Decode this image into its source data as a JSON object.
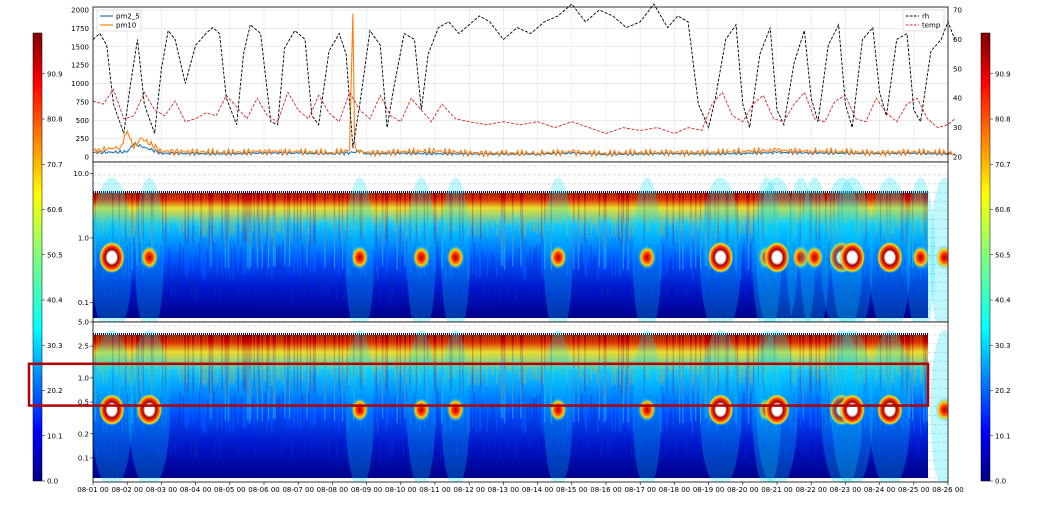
{
  "chart_data": [
    {
      "type": "line",
      "panel": "time-series",
      "x_labels": [
        "08-01 00",
        "08-02 00",
        "08-03 00",
        "08-04 00",
        "08-05 00",
        "08-06 00",
        "08-07 00",
        "08-08 00",
        "08-09 00",
        "08-10 00",
        "08-11 00",
        "08-12 00",
        "08-13 00",
        "08-14 00",
        "08-15 00",
        "08-16 00",
        "08-17 00",
        "08-18 00",
        "08-19 00",
        "08-20 00",
        "08-21 00",
        "08-22 00",
        "08-23 00",
        "08-24 00",
        "08-25 00",
        "08-26 00"
      ],
      "xlim": [
        "08-01 00",
        "08-26 00"
      ],
      "left_axis": {
        "ylim": [
          0,
          2000
        ],
        "ticks": [
          "0",
          "250",
          "500",
          "750",
          "1000",
          "1250",
          "1500",
          "1750",
          "2000"
        ]
      },
      "right_axis": {
        "ylim": [
          20,
          70
        ],
        "ticks": [
          "20",
          "30",
          "40",
          "50",
          "60",
          "70"
        ]
      },
      "legend_left": {
        "placement": "upper-left",
        "entries": [
          {
            "name": "pm2_5",
            "color": "#1f77b4"
          },
          {
            "name": "pm10",
            "color": "#ff7f0e"
          }
        ]
      },
      "legend_right": {
        "placement": "upper-right",
        "entries": [
          {
            "name": "rh",
            "color": "#000000",
            "style": "dashed"
          },
          {
            "name": "temp",
            "color": "#d62728",
            "style": "dashed"
          }
        ]
      },
      "series": [
        {
          "name": "pm2_5",
          "axis": "left",
          "x_day": [
            0,
            1,
            1.2,
            2,
            3,
            4,
            5,
            6,
            7,
            7.6,
            7.8,
            8,
            9,
            10,
            11,
            12,
            13,
            14,
            15,
            16,
            17,
            18,
            19,
            20,
            21,
            22,
            23,
            24,
            25,
            25.2
          ],
          "values": [
            60,
            70,
            180,
            50,
            45,
            40,
            55,
            50,
            45,
            60,
            80,
            40,
            50,
            45,
            40,
            35,
            40,
            50,
            35,
            40,
            45,
            40,
            50,
            60,
            55,
            50,
            45,
            50,
            40,
            45
          ]
        },
        {
          "name": "pm10",
          "axis": "left",
          "x_day": [
            0,
            0.2,
            0.8,
            1.0,
            1.2,
            1.4,
            2,
            3,
            4,
            5,
            6,
            7,
            7.5,
            7.6,
            7.65,
            7.7,
            8,
            9,
            10,
            11,
            12,
            13,
            14,
            15,
            16,
            17,
            18,
            19,
            20,
            21,
            22,
            23,
            24,
            25,
            25.2
          ],
          "values": [
            90,
            100,
            130,
            350,
            120,
            260,
            80,
            70,
            60,
            80,
            70,
            60,
            90,
            1950,
            200,
            90,
            60,
            70,
            80,
            60,
            50,
            55,
            70,
            50,
            60,
            65,
            60,
            80,
            90,
            80,
            70,
            60,
            70,
            60,
            50
          ]
        },
        {
          "name": "rh",
          "axis": "right",
          "x_day": [
            0,
            0.2,
            0.4,
            0.6,
            0.9,
            1.1,
            1.3,
            1.5,
            1.8,
            2.0,
            2.2,
            2.4,
            2.7,
            3.0,
            3.3,
            3.5,
            3.7,
            3.9,
            4.2,
            4.4,
            4.6,
            4.9,
            5.2,
            5.4,
            5.6,
            5.9,
            6.2,
            6.4,
            6.6,
            6.9,
            7.2,
            7.4,
            7.6,
            7.8,
            8.1,
            8.4,
            8.6,
            8.8,
            9.1,
            9.4,
            9.6,
            9.8,
            10.1,
            10.4,
            10.7,
            11.0,
            11.3,
            11.6,
            12.0,
            12.4,
            12.8,
            13.2,
            13.6,
            14.0,
            14.4,
            14.8,
            15.2,
            15.6,
            16.0,
            16.4,
            16.8,
            17.1,
            17.4,
            17.7,
            18.0,
            18.2,
            18.5,
            18.8,
            19.0,
            19.2,
            19.5,
            19.8,
            20.0,
            20.2,
            20.5,
            20.8,
            21.0,
            21.2,
            21.5,
            21.8,
            22.0,
            22.2,
            22.5,
            22.8,
            23.0,
            23.2,
            23.5,
            23.8,
            24.0,
            24.2,
            24.5,
            24.8,
            25.0,
            25.2
          ],
          "values": [
            60,
            62,
            58,
            38,
            28,
            45,
            60,
            38,
            28,
            50,
            63,
            60,
            45,
            58,
            62,
            64,
            62,
            40,
            31,
            55,
            65,
            62,
            32,
            31,
            57,
            63,
            60,
            34,
            31,
            56,
            62,
            55,
            23,
            38,
            63,
            58,
            30,
            44,
            62,
            60,
            36,
            55,
            64,
            66,
            62,
            65,
            68,
            66,
            60,
            64,
            62,
            66,
            68,
            72,
            66,
            70,
            68,
            64,
            66,
            72,
            64,
            68,
            66,
            38,
            30,
            40,
            60,
            65,
            38,
            30,
            55,
            64,
            36,
            31,
            52,
            63,
            40,
            32,
            58,
            65,
            38,
            30,
            60,
            64,
            42,
            34,
            60,
            62,
            36,
            32,
            56,
            60,
            66,
            60
          ]
        },
        {
          "name": "temp",
          "axis": "right",
          "x_day": [
            0,
            0.3,
            0.6,
            0.9,
            1.2,
            1.5,
            1.8,
            2.1,
            2.4,
            2.7,
            3.0,
            3.3,
            3.6,
            3.9,
            4.2,
            4.5,
            4.8,
            5.1,
            5.4,
            5.7,
            6.0,
            6.3,
            6.6,
            6.9,
            7.2,
            7.5,
            7.8,
            8.1,
            8.4,
            8.7,
            9.0,
            9.3,
            9.6,
            9.9,
            10.2,
            10.6,
            11.0,
            11.5,
            12.0,
            12.5,
            13.0,
            13.5,
            14.0,
            14.5,
            15.0,
            15.5,
            16.0,
            16.5,
            17.0,
            17.4,
            17.8,
            18.1,
            18.4,
            18.7,
            19.0,
            19.3,
            19.6,
            19.9,
            20.2,
            20.5,
            20.8,
            21.1,
            21.4,
            21.7,
            22.0,
            22.3,
            22.6,
            22.9,
            23.2,
            23.5,
            23.8,
            24.1,
            24.4,
            24.7,
            25.0,
            25.2
          ],
          "values": [
            39,
            38,
            43,
            33,
            34,
            42,
            36,
            34,
            39,
            32,
            33,
            35,
            34,
            41,
            37,
            33,
            40,
            34,
            32,
            42,
            36,
            33,
            41,
            35,
            32,
            42,
            36,
            33,
            41,
            34,
            32,
            40,
            36,
            32,
            38,
            33,
            32,
            31,
            32,
            31,
            32,
            30,
            32,
            30,
            28,
            30,
            29,
            30,
            28,
            30,
            29,
            38,
            42,
            34,
            32,
            38,
            41,
            33,
            32,
            38,
            42,
            33,
            32,
            39,
            41,
            33,
            32,
            40,
            35,
            32,
            38,
            40,
            33,
            30,
            31,
            33
          ]
        }
      ]
    },
    {
      "type": "heatmap",
      "panel": "wavelet-pm2_5",
      "y_scale": "log",
      "ylim": [
        0.05,
        15
      ],
      "y_ticks": [
        "0.1",
        "1.0",
        "10.0"
      ],
      "colorscale": "jet",
      "hot_spots": [
        {
          "x_day": 0.55,
          "y": 0.5,
          "level": "saturated"
        },
        {
          "x_day": 1.65,
          "y": 0.5,
          "level": "high"
        },
        {
          "x_day": 7.8,
          "y": 0.5,
          "level": "high"
        },
        {
          "x_day": 9.6,
          "y": 0.5,
          "level": "high"
        },
        {
          "x_day": 10.6,
          "y": 0.5,
          "level": "high"
        },
        {
          "x_day": 13.6,
          "y": 0.5,
          "level": "high"
        },
        {
          "x_day": 16.2,
          "y": 0.5,
          "level": "high"
        },
        {
          "x_day": 18.35,
          "y": 0.5,
          "level": "saturated"
        },
        {
          "x_day": 19.7,
          "y": 0.5,
          "level": "high"
        },
        {
          "x_day": 20.0,
          "y": 0.5,
          "level": "saturated"
        },
        {
          "x_day": 20.7,
          "y": 0.5,
          "level": "high"
        },
        {
          "x_day": 21.1,
          "y": 0.5,
          "level": "high"
        },
        {
          "x_day": 21.9,
          "y": 0.5,
          "level": "saturated"
        },
        {
          "x_day": 22.2,
          "y": 0.5,
          "level": "saturated"
        },
        {
          "x_day": 23.3,
          "y": 0.5,
          "level": "saturated"
        },
        {
          "x_day": 24.2,
          "y": 0.5,
          "level": "high"
        },
        {
          "x_day": 24.9,
          "y": 0.5,
          "level": "high"
        }
      ]
    },
    {
      "type": "heatmap",
      "panel": "wavelet-pm10",
      "y_scale": "log",
      "ylim": [
        0.05,
        5
      ],
      "y_ticks": [
        "0.1",
        "0.2",
        "0.5",
        "1.0",
        "2.5",
        "5.0"
      ],
      "colorscale": "jet",
      "highlight_band": {
        "ymin": 0.45,
        "ymax": 1.5,
        "color": "#b00000"
      },
      "hot_spots": [
        {
          "x_day": 0.55,
          "y": 0.4,
          "level": "saturated"
        },
        {
          "x_day": 1.65,
          "y": 0.4,
          "level": "saturated"
        },
        {
          "x_day": 7.8,
          "y": 0.4,
          "level": "high"
        },
        {
          "x_day": 9.6,
          "y": 0.4,
          "level": "high"
        },
        {
          "x_day": 10.6,
          "y": 0.4,
          "level": "high"
        },
        {
          "x_day": 13.6,
          "y": 0.4,
          "level": "high"
        },
        {
          "x_day": 16.2,
          "y": 0.4,
          "level": "high"
        },
        {
          "x_day": 18.35,
          "y": 0.4,
          "level": "saturated"
        },
        {
          "x_day": 19.7,
          "y": 0.4,
          "level": "high"
        },
        {
          "x_day": 20.0,
          "y": 0.4,
          "level": "saturated"
        },
        {
          "x_day": 21.9,
          "y": 0.4,
          "level": "saturated"
        },
        {
          "x_day": 22.2,
          "y": 0.4,
          "level": "saturated"
        },
        {
          "x_day": 23.3,
          "y": 0.4,
          "level": "saturated"
        },
        {
          "x_day": 24.9,
          "y": 0.4,
          "level": "high"
        }
      ]
    }
  ],
  "colorbar": {
    "ticks": [
      "0.0",
      "10.1",
      "20.2",
      "30.3",
      "40.4",
      "50.5",
      "60.6",
      "70.7",
      "80.8",
      "90.9"
    ],
    "vmin": 0,
    "vmax": 100
  }
}
